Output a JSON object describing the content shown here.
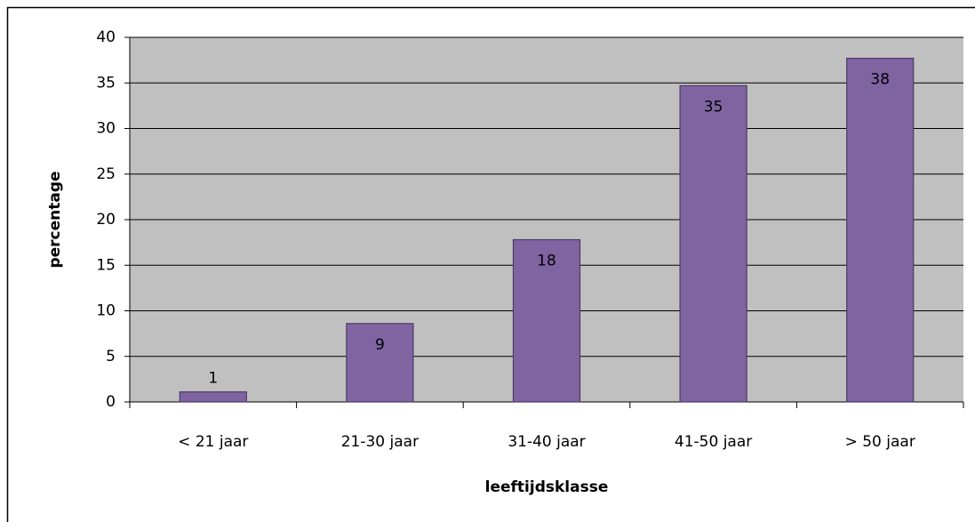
{
  "chart_data": {
    "type": "bar",
    "categories": [
      "< 21 jaar",
      "21-30 jaar",
      "31-40 jaar",
      "41-50 jaar",
      "> 50 jaar"
    ],
    "values": [
      1.1,
      8.6,
      17.8,
      34.7,
      37.7
    ],
    "value_labels": [
      "1",
      "9",
      "18",
      "35",
      "38"
    ],
    "color": "#8064a2",
    "ylim": [
      0,
      40
    ],
    "yticks": [
      0,
      5,
      10,
      15,
      20,
      25,
      30,
      35,
      40
    ],
    "grid": true,
    "ylabel": "percentage",
    "xlabel": "leeftijdsklasse"
  }
}
